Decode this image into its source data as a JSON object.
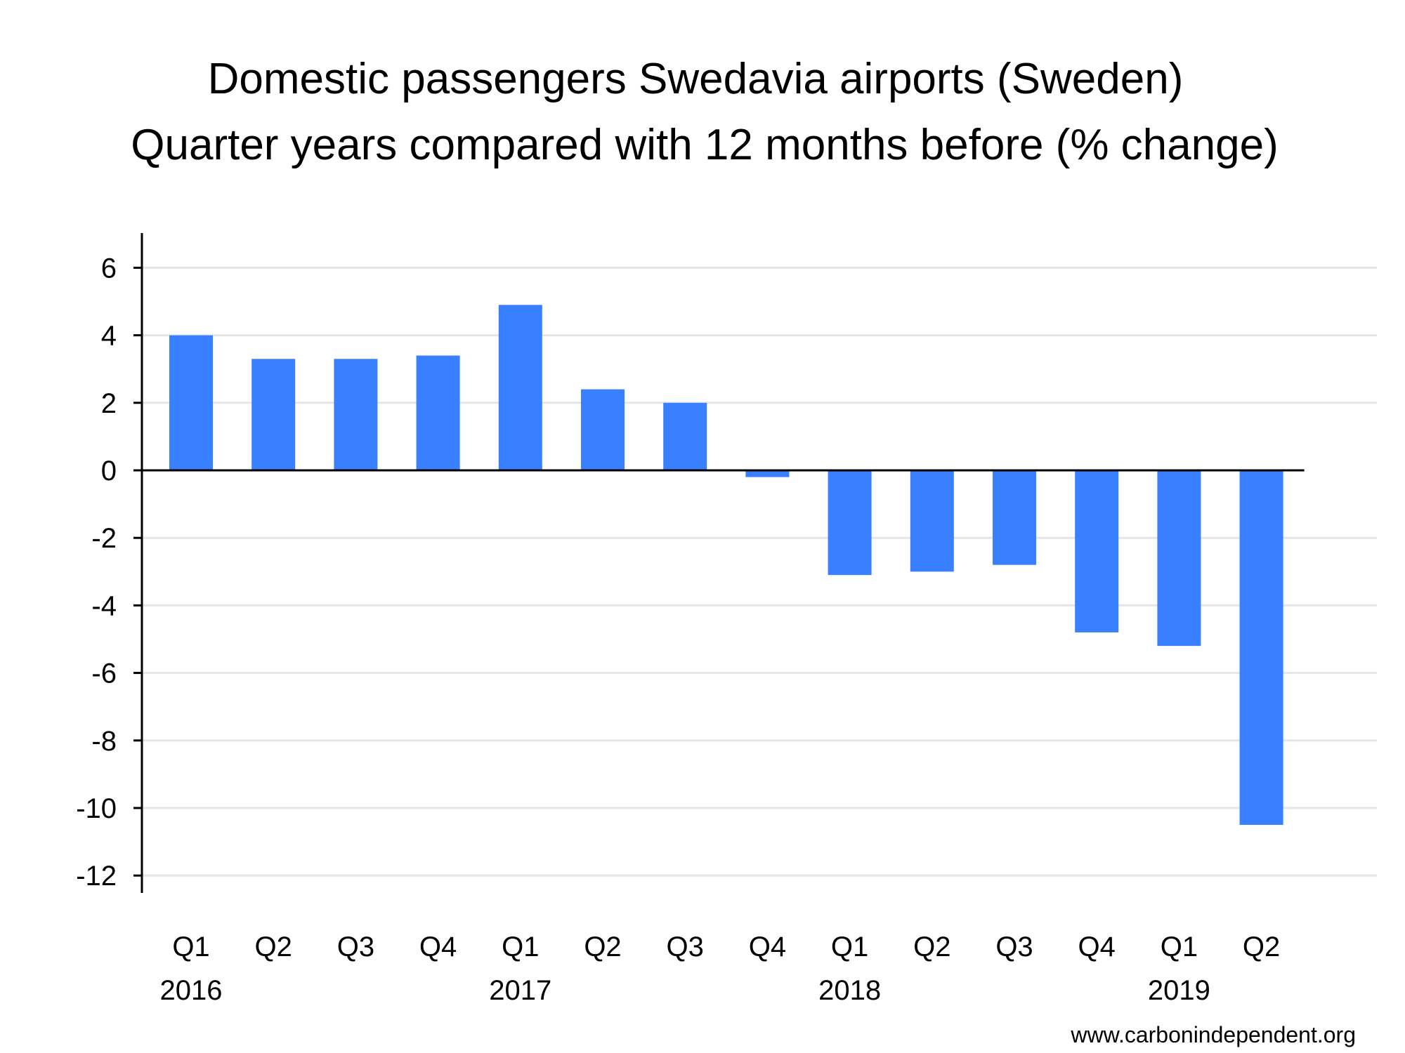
{
  "chart_data": {
    "type": "bar",
    "title": "Domestic passengers Swedavia airports (Sweden)",
    "subtitle": "Quarter years compared with 12 months before (% change)",
    "xlabel": "",
    "ylabel": "",
    "categories": [
      "Q1",
      "Q2",
      "Q3",
      "Q4",
      "Q1",
      "Q2",
      "Q3",
      "Q4",
      "Q1",
      "Q2",
      "Q3",
      "Q4",
      "Q1",
      "Q2"
    ],
    "year_labels": [
      {
        "label": "2016",
        "index": 0
      },
      {
        "label": "2017",
        "index": 4
      },
      {
        "label": "2018",
        "index": 8
      },
      {
        "label": "2019",
        "index": 12
      }
    ],
    "values": [
      4.0,
      3.3,
      3.3,
      3.4,
      4.9,
      2.4,
      2.0,
      -0.2,
      -3.1,
      -3.0,
      -2.8,
      -4.8,
      -5.2,
      -10.5
    ],
    "ylim": [
      -12.5,
      7
    ],
    "yticks": [
      6,
      4,
      2,
      0,
      -2,
      -4,
      -6,
      -8,
      -10,
      -12
    ],
    "grid": true,
    "bar_color": "#3880ff",
    "grid_color": "#e6e6e6"
  },
  "footer": {
    "source": "www.carbonindependent.org"
  }
}
